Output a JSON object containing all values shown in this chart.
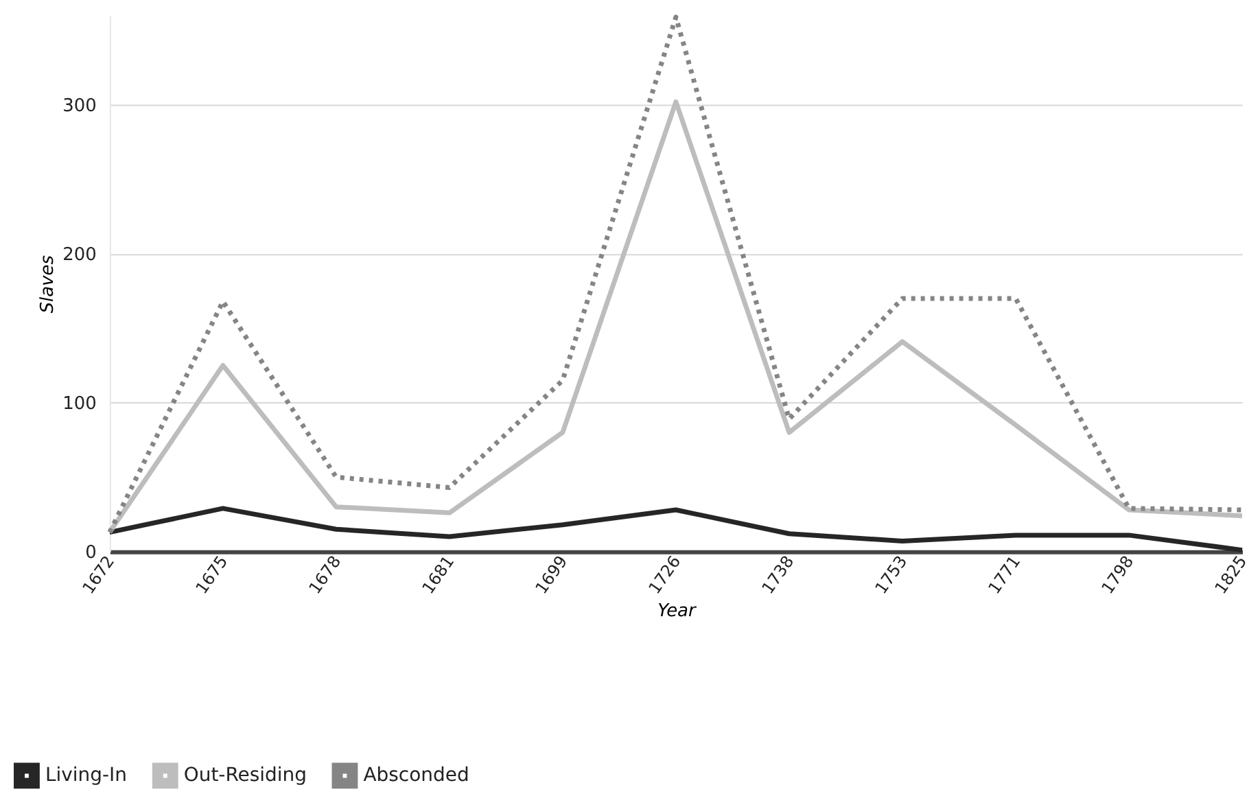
{
  "chart_data": {
    "type": "line",
    "xlabel": "Year",
    "ylabel": "Slaves",
    "categories": [
      "1672",
      "1675",
      "1678",
      "1681",
      "1699",
      "1726",
      "1738",
      "1753",
      "1771",
      "1798",
      "1825"
    ],
    "series": [
      {
        "name": "Living-In",
        "color": "#262626",
        "line_style": "solid",
        "values": [
          13,
          29,
          15,
          10,
          18,
          28,
          12,
          7,
          11,
          11,
          1
        ]
      },
      {
        "name": "Out-Residing",
        "color": "#bdbdbd",
        "line_style": "solid",
        "values": [
          13,
          125,
          30,
          26,
          80,
          302,
          80,
          141,
          85,
          28,
          24
        ]
      },
      {
        "name": "Absconded",
        "color": "#858585",
        "line_style": "dotted",
        "values": [
          13,
          168,
          50,
          43,
          115,
          359,
          89,
          170,
          170,
          29,
          28
        ]
      }
    ],
    "ylim": [
      0,
      360
    ],
    "yticks": [
      0,
      100,
      200,
      300
    ],
    "grid": "y",
    "legend": "bottom left",
    "marker": "none"
  }
}
